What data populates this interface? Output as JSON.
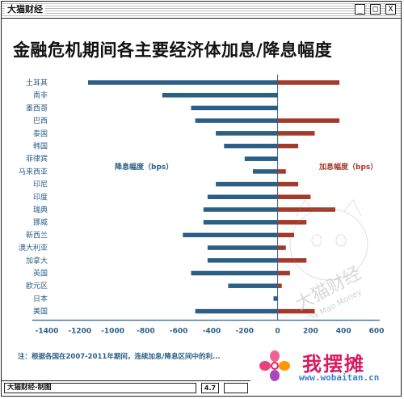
{
  "window": {
    "title": "大猫财经",
    "buttons": [
      "_",
      "□",
      "X"
    ]
  },
  "chart_data": {
    "type": "bar",
    "orientation": "horizontal",
    "title": "金融危机期间各主要经济体加息/降息幅度",
    "categories": [
      "土耳其",
      "南非",
      "墨西哥",
      "巴西",
      "泰国",
      "韩国",
      "菲律宾",
      "马来西亚",
      "印尼",
      "印度",
      "瑞典",
      "挪威",
      "新西兰",
      "澳大利亚",
      "加拿大",
      "英国",
      "欧元区",
      "日本",
      "美国"
    ],
    "series": [
      {
        "name": "降息幅度（bps）",
        "color": "#2b5f86",
        "values": [
          -1150,
          -700,
          -525,
          -500,
          -375,
          -325,
          -200,
          -150,
          -375,
          -425,
          -450,
          -450,
          -575,
          -425,
          -425,
          -525,
          -300,
          -25,
          -500
        ]
      },
      {
        "name": "加息幅度（bps）",
        "color": "#a33a2c",
        "values": [
          375,
          0,
          0,
          375,
          225,
          125,
          0,
          50,
          125,
          200,
          350,
          175,
          100,
          50,
          175,
          75,
          25,
          0,
          225
        ]
      }
    ],
    "xlim": [
      -1400,
      600
    ],
    "xticks": [
      -1400,
      -1200,
      -1000,
      -800,
      -600,
      -400,
      -200,
      0,
      200,
      400,
      600
    ],
    "grid": false,
    "legend": "inline labels"
  },
  "note": "注：根据各国在2007-2011年期间，连续加息/降息区间中的利...",
  "status": {
    "left": "大猫财经-制图",
    "version": "4.7"
  },
  "stamp_text": {
    "cn": "大猫财经",
    "en": "Da Mao Money"
  },
  "watermark": {
    "name": "我摆摊",
    "url": "www.wobaitan.cn"
  }
}
